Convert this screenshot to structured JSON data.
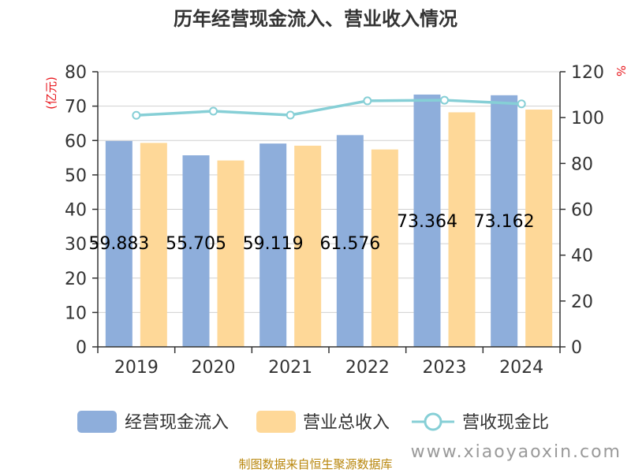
{
  "chart_data": {
    "type": "bar",
    "title": "历年经营现金流入、营业收入情况",
    "categories": [
      "2019",
      "2020",
      "2021",
      "2022",
      "2023",
      "2024"
    ],
    "series": [
      {
        "name": "经营现金流入",
        "type": "bar",
        "axis": "left",
        "color": "#8eaedb",
        "values": [
          59.883,
          55.705,
          59.119,
          61.576,
          73.364,
          73.162
        ]
      },
      {
        "name": "营业总收入",
        "type": "bar",
        "axis": "left",
        "color": "#fed898",
        "values": [
          59.3,
          54.2,
          58.5,
          57.4,
          68.2,
          69.0
        ]
      },
      {
        "name": "营收现金比",
        "type": "line",
        "axis": "right",
        "color": "#86cfd6",
        "values": [
          101.0,
          102.8,
          101.1,
          107.3,
          107.6,
          106.0
        ]
      }
    ],
    "data_labels": [
      "59.883",
      "55.705",
      "59.119",
      "61.576",
      "73.364",
      "73.162"
    ],
    "y_left": {
      "label": "(亿元)",
      "ylim": [
        0,
        80
      ],
      "ticks": [
        0,
        10,
        20,
        30,
        40,
        50,
        60,
        70,
        80
      ]
    },
    "y_right": {
      "label": "%",
      "ylim": [
        0,
        120
      ],
      "ticks": [
        0,
        20,
        40,
        60,
        80,
        100,
        120
      ]
    },
    "grid": true,
    "legend_position": "bottom"
  },
  "footer": {
    "source": "制图数据来自恒生聚源数据库",
    "watermark": "www.xiaoyaoxin.com"
  }
}
